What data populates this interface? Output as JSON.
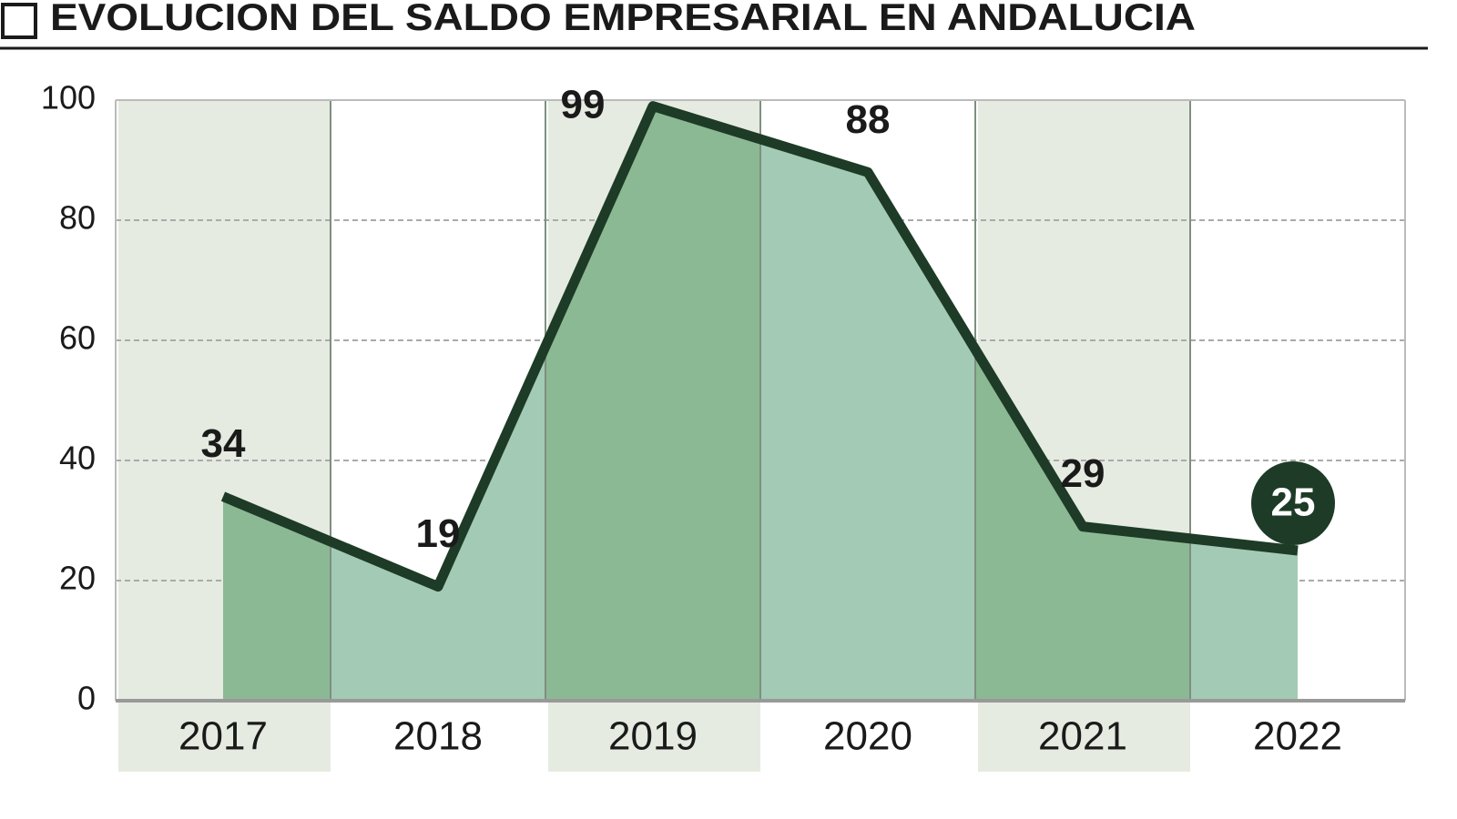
{
  "chart_data": {
    "type": "area",
    "title": "EVOLUCION DEL SALDO EMPRESARIAL EN ANDALUCIA",
    "categories": [
      "2017",
      "2018",
      "2019",
      "2020",
      "2021",
      "2022"
    ],
    "values": [
      34,
      19,
      99,
      88,
      29,
      25
    ],
    "ylim": [
      0,
      100
    ],
    "yticks": [
      0,
      20,
      40,
      60,
      80,
      100
    ],
    "grid": true,
    "line_color": "#1d3b26",
    "fill_color": "#a3cab4",
    "shaded_fill_color": "#8bb993",
    "band_color": "#e5ebe1"
  }
}
